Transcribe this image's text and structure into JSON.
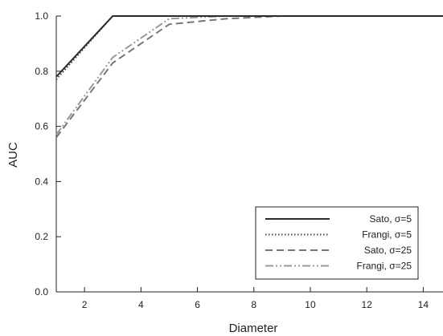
{
  "chart_data": {
    "type": "line",
    "xlabel": "Diameter",
    "ylabel": "AUC",
    "xlim": [
      1,
      14.7
    ],
    "ylim": [
      0.0,
      1.0
    ],
    "xticks": [
      2,
      4,
      6,
      8,
      10,
      12,
      14
    ],
    "yticks": [
      0.0,
      0.2,
      0.4,
      0.6,
      0.8,
      1.0
    ],
    "x_tick_labels": [
      "2",
      "4",
      "6",
      "8",
      "10",
      "12",
      "14"
    ],
    "y_tick_labels": [
      "0.0",
      "0.2",
      "0.4",
      "0.6",
      "0.8",
      "1.0"
    ],
    "grid": false,
    "legend_position": "bottom-right",
    "series": [
      {
        "name": "Sato, σ=5",
        "style": "solid",
        "color": "#2b2b2b",
        "x": [
          1,
          3,
          5,
          7,
          9,
          11,
          13,
          14.7
        ],
        "y": [
          0.78,
          1.0,
          1.0,
          1.0,
          1.0,
          1.0,
          1.0,
          1.0
        ]
      },
      {
        "name": "Frangi, σ=5",
        "style": "dotted",
        "color": "#444444",
        "x": [
          1,
          3,
          5,
          7,
          9,
          11,
          13,
          14.7
        ],
        "y": [
          0.77,
          1.0,
          1.0,
          1.0,
          1.0,
          1.0,
          1.0,
          1.0
        ]
      },
      {
        "name": "Sato, σ=25",
        "style": "dashed",
        "color": "#777777",
        "x": [
          1,
          3,
          5,
          7,
          9,
          11,
          13,
          14.7
        ],
        "y": [
          0.56,
          0.83,
          0.97,
          0.99,
          1.0,
          1.0,
          1.0,
          1.0
        ]
      },
      {
        "name": "Frangi, σ=25",
        "style": "dashdotdot",
        "color": "#9a9a9a",
        "x": [
          1,
          3,
          5,
          7,
          9,
          11,
          13,
          14.7
        ],
        "y": [
          0.57,
          0.85,
          0.99,
          1.0,
          1.0,
          1.0,
          1.0,
          1.0
        ]
      }
    ]
  }
}
